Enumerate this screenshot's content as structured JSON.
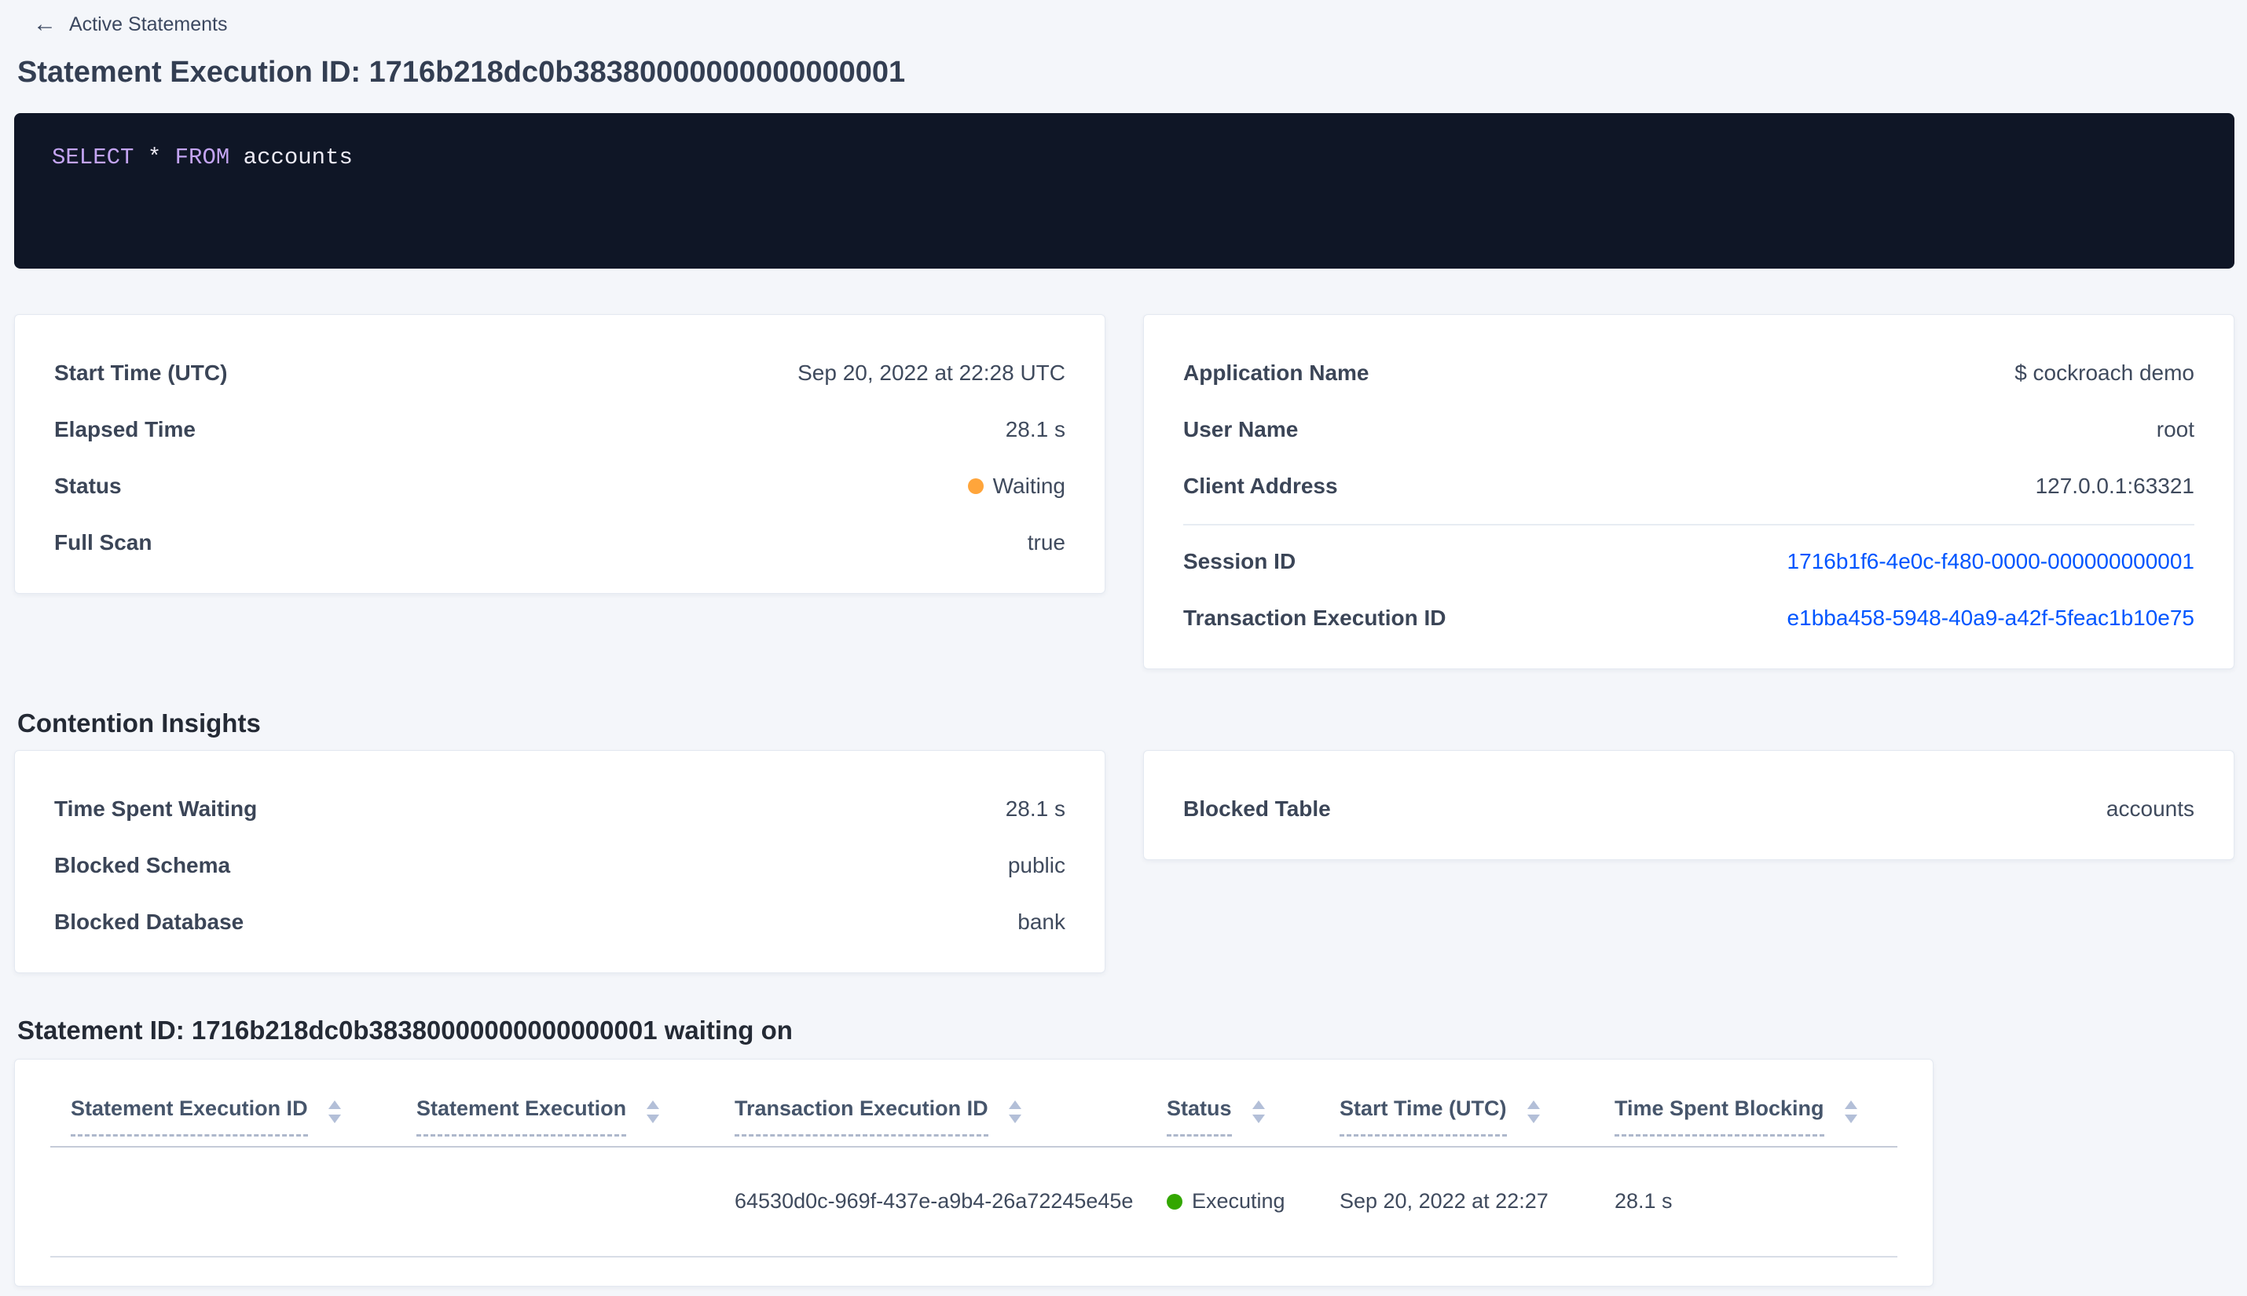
{
  "header": {
    "back_label": "Active Statements",
    "title": "Statement Execution ID: 1716b218dc0b38380000000000000001"
  },
  "sql_box": {
    "tokens": [
      {
        "type": "keyword",
        "text": "SELECT"
      },
      {
        "type": "plain",
        "text": " * "
      },
      {
        "type": "keyword",
        "text": "FROM"
      },
      {
        "type": "plain",
        "text": " accounts"
      }
    ]
  },
  "overview_card": {
    "rows": [
      {
        "label": "Start Time (UTC)",
        "value": "Sep 20, 2022 at 22:28 UTC"
      },
      {
        "label": "Elapsed Time",
        "value": "28.1 s"
      },
      {
        "label": "Status",
        "value": "Waiting"
      },
      {
        "label": "Full Scan",
        "value": "true"
      }
    ]
  },
  "session_card": {
    "rows_top": [
      {
        "label": "Application Name",
        "value": "$ cockroach demo"
      },
      {
        "label": "User Name",
        "value": "root"
      },
      {
        "label": "Client Address",
        "value": "127.0.0.1:63321"
      }
    ],
    "rows_links": [
      {
        "label": "Session ID",
        "value": "1716b1f6-4e0c-f480-0000-000000000001"
      },
      {
        "label": "Transaction Execution ID",
        "value": "e1bba458-5948-40a9-a42f-5feac1b10e75"
      }
    ]
  },
  "contention": {
    "heading": "Contention Insights",
    "waiting_card": {
      "rows": [
        {
          "label": "Time Spent Waiting",
          "value": "28.1 s"
        },
        {
          "label": "Blocked Schema",
          "value": "public"
        },
        {
          "label": "Blocked Database",
          "value": "bank"
        }
      ]
    },
    "blocked_table_card": {
      "rows": [
        {
          "label": "Blocked Table",
          "value": "accounts"
        }
      ]
    }
  },
  "waiting_on": {
    "heading": "Statement ID: 1716b218dc0b38380000000000000001 waiting on",
    "table": {
      "columns": [
        "Statement Execution ID",
        "Statement Execution",
        "Transaction Execution ID",
        "Status",
        "Start Time (UTC)",
        "Time Spent Blocking"
      ],
      "rows": [
        {
          "statement_execution_id": "",
          "statement_execution": "",
          "transaction_execution_id": "64530d0c-969f-437e-a9b4-26a72245e45e",
          "status": "Executing",
          "start_time": "Sep 20, 2022 at 22:27",
          "time_spent_blocking": "28.1 s"
        }
      ]
    }
  },
  "colors": {
    "page_bg": "#f4f6fa",
    "link_blue": "#0055ff",
    "status_waiting": "#ffa53b",
    "status_executing": "#33a700",
    "sql_box_bg": "#0f1626",
    "sql_keyword": "#c3a4f2",
    "sql_text": "#eceaf4"
  }
}
